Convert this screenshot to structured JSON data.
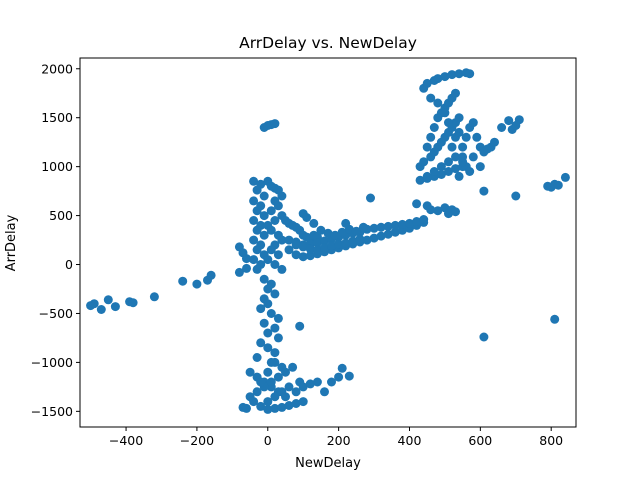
{
  "chart_data": {
    "type": "scatter",
    "title": "ArrDelay vs. NewDelay",
    "xlabel": "NewDelay",
    "ylabel": "ArrDelay",
    "xlim": [
      -530,
      870
    ],
    "ylim": [
      -1660,
      2110
    ],
    "xticks": [
      -400,
      -200,
      0,
      200,
      400,
      600,
      800
    ],
    "xtick_labels": [
      "−400",
      "−200",
      "0",
      "200",
      "400",
      "600",
      "800"
    ],
    "yticks": [
      -1500,
      -1000,
      -500,
      0,
      500,
      1000,
      1500,
      2000
    ],
    "ytick_labels": [
      "−1500",
      "−1000",
      "−500",
      "0",
      "500",
      "1000",
      "1500",
      "2000"
    ],
    "grid": false,
    "color": "#1f77b4",
    "points": [
      [
        -500,
        -420
      ],
      [
        -490,
        -400
      ],
      [
        -470,
        -460
      ],
      [
        -450,
        -360
      ],
      [
        -430,
        -430
      ],
      [
        -390,
        -380
      ],
      [
        -380,
        -390
      ],
      [
        -320,
        -330
      ],
      [
        -240,
        -170
      ],
      [
        -200,
        -200
      ],
      [
        -170,
        -160
      ],
      [
        -160,
        -110
      ],
      [
        -10,
        1400
      ],
      [
        0,
        1420
      ],
      [
        10,
        1430
      ],
      [
        20,
        1440
      ],
      [
        -80,
        180
      ],
      [
        -70,
        120
      ],
      [
        -60,
        60
      ],
      [
        -80,
        -80
      ],
      [
        -60,
        -40
      ],
      [
        -40,
        850
      ],
      [
        -20,
        820
      ],
      [
        -30,
        760
      ],
      [
        -10,
        700
      ],
      [
        -40,
        650
      ],
      [
        -20,
        600
      ],
      [
        -30,
        550
      ],
      [
        -10,
        500
      ],
      [
        -40,
        450
      ],
      [
        -20,
        400
      ],
      [
        -30,
        350
      ],
      [
        -10,
        300
      ],
      [
        -40,
        250
      ],
      [
        -20,
        200
      ],
      [
        -30,
        150
      ],
      [
        -10,
        100
      ],
      [
        -40,
        50
      ],
      [
        -20,
        0
      ],
      [
        -30,
        -50
      ],
      [
        0,
        850
      ],
      [
        10,
        800
      ],
      [
        20,
        780
      ],
      [
        30,
        760
      ],
      [
        40,
        700
      ],
      [
        20,
        650
      ],
      [
        30,
        600
      ],
      [
        10,
        550
      ],
      [
        40,
        500
      ],
      [
        20,
        450
      ],
      [
        0,
        400
      ],
      [
        10,
        350
      ],
      [
        30,
        300
      ],
      [
        40,
        250
      ],
      [
        20,
        200
      ],
      [
        10,
        150
      ],
      [
        30,
        100
      ],
      [
        0,
        50
      ],
      [
        20,
        0
      ],
      [
        40,
        -50
      ],
      [
        50,
        450
      ],
      [
        60,
        420
      ],
      [
        70,
        400
      ],
      [
        80,
        380
      ],
      [
        90,
        350
      ],
      [
        100,
        300
      ],
      [
        110,
        280
      ],
      [
        120,
        260
      ],
      [
        130,
        300
      ],
      [
        140,
        280
      ],
      [
        60,
        150
      ],
      [
        80,
        100
      ],
      [
        100,
        80
      ],
      [
        120,
        90
      ],
      [
        140,
        110
      ],
      [
        160,
        130
      ],
      [
        180,
        150
      ],
      [
        200,
        170
      ],
      [
        220,
        190
      ],
      [
        240,
        210
      ],
      [
        260,
        230
      ],
      [
        280,
        250
      ],
      [
        300,
        270
      ],
      [
        320,
        290
      ],
      [
        340,
        310
      ],
      [
        360,
        330
      ],
      [
        380,
        350
      ],
      [
        400,
        370
      ],
      [
        420,
        400
      ],
      [
        440,
        430
      ],
      [
        60,
        250
      ],
      [
        80,
        230
      ],
      [
        100,
        200
      ],
      [
        120,
        210
      ],
      [
        140,
        220
      ],
      [
        160,
        240
      ],
      [
        180,
        260
      ],
      [
        200,
        280
      ],
      [
        220,
        300
      ],
      [
        240,
        320
      ],
      [
        260,
        330
      ],
      [
        280,
        360
      ],
      [
        300,
        370
      ],
      [
        320,
        380
      ],
      [
        340,
        390
      ],
      [
        360,
        400
      ],
      [
        380,
        410
      ],
      [
        400,
        420
      ],
      [
        420,
        440
      ],
      [
        440,
        460
      ],
      [
        80,
        200
      ],
      [
        100,
        180
      ],
      [
        120,
        160
      ],
      [
        140,
        150
      ],
      [
        160,
        170
      ],
      [
        180,
        190
      ],
      [
        200,
        210
      ],
      [
        220,
        220
      ],
      [
        240,
        240
      ],
      [
        260,
        260
      ],
      [
        100,
        520
      ],
      [
        110,
        480
      ],
      [
        130,
        420
      ],
      [
        150,
        350
      ],
      [
        170,
        320
      ],
      [
        190,
        300
      ],
      [
        210,
        330
      ],
      [
        230,
        360
      ],
      [
        250,
        340
      ],
      [
        270,
        380
      ],
      [
        220,
        420
      ],
      [
        290,
        680
      ],
      [
        420,
        620
      ],
      [
        450,
        600
      ],
      [
        460,
        560
      ],
      [
        480,
        550
      ],
      [
        500,
        580
      ],
      [
        510,
        520
      ],
      [
        520,
        560
      ],
      [
        530,
        540
      ],
      [
        610,
        750
      ],
      [
        700,
        700
      ],
      [
        790,
        800
      ],
      [
        800,
        790
      ],
      [
        810,
        820
      ],
      [
        820,
        810
      ],
      [
        840,
        890
      ],
      [
        430,
        860
      ],
      [
        450,
        880
      ],
      [
        470,
        900
      ],
      [
        490,
        920
      ],
      [
        510,
        950
      ],
      [
        530,
        980
      ],
      [
        550,
        1000
      ],
      [
        430,
        1000
      ],
      [
        440,
        1050
      ],
      [
        460,
        1100
      ],
      [
        470,
        1150
      ],
      [
        480,
        1200
      ],
      [
        490,
        1250
      ],
      [
        500,
        1300
      ],
      [
        510,
        1350
      ],
      [
        520,
        1400
      ],
      [
        530,
        1450
      ],
      [
        540,
        1500
      ],
      [
        450,
        1200
      ],
      [
        460,
        1300
      ],
      [
        470,
        1400
      ],
      [
        480,
        1500
      ],
      [
        490,
        1550
      ],
      [
        500,
        1600
      ],
      [
        510,
        1650
      ],
      [
        520,
        1700
      ],
      [
        530,
        1750
      ],
      [
        440,
        1800
      ],
      [
        450,
        1850
      ],
      [
        470,
        1880
      ],
      [
        480,
        1900
      ],
      [
        500,
        1920
      ],
      [
        520,
        1940
      ],
      [
        540,
        1950
      ],
      [
        560,
        1960
      ],
      [
        570,
        1950
      ],
      [
        460,
        1700
      ],
      [
        480,
        1650
      ],
      [
        500,
        1550
      ],
      [
        510,
        1450
      ],
      [
        450,
        900
      ],
      [
        470,
        950
      ],
      [
        490,
        1000
      ],
      [
        510,
        1050
      ],
      [
        530,
        1100
      ],
      [
        550,
        1200
      ],
      [
        560,
        1300
      ],
      [
        570,
        1400
      ],
      [
        580,
        1450
      ],
      [
        590,
        1300
      ],
      [
        600,
        1200
      ],
      [
        610,
        1150
      ],
      [
        620,
        1180
      ],
      [
        630,
        1200
      ],
      [
        640,
        1250
      ],
      [
        660,
        1400
      ],
      [
        680,
        1470
      ],
      [
        690,
        1380
      ],
      [
        700,
        1420
      ],
      [
        710,
        1480
      ],
      [
        560,
        1000
      ],
      [
        570,
        950
      ],
      [
        580,
        1100
      ],
      [
        550,
        1050
      ],
      [
        540,
        900
      ],
      [
        600,
        1000
      ],
      [
        520,
        1200
      ],
      [
        530,
        1300
      ],
      [
        540,
        1350
      ],
      [
        550,
        1100
      ],
      [
        -10,
        -150
      ],
      [
        0,
        -250
      ],
      [
        10,
        -200
      ],
      [
        -10,
        -350
      ],
      [
        20,
        -300
      ],
      [
        0,
        -400
      ],
      [
        -20,
        -450
      ],
      [
        10,
        -500
      ],
      [
        30,
        -550
      ],
      [
        -10,
        -600
      ],
      [
        20,
        -650
      ],
      [
        0,
        -700
      ],
      [
        30,
        -750
      ],
      [
        90,
        -630
      ],
      [
        -20,
        -800
      ],
      [
        0,
        -850
      ],
      [
        20,
        -900
      ],
      [
        -30,
        -950
      ],
      [
        10,
        -1000
      ],
      [
        40,
        -1050
      ],
      [
        -50,
        -1100
      ],
      [
        -30,
        -1150
      ],
      [
        -10,
        -1200
      ],
      [
        10,
        -1250
      ],
      [
        30,
        -1300
      ],
      [
        50,
        -1350
      ],
      [
        -40,
        -1400
      ],
      [
        -20,
        -1450
      ],
      [
        0,
        -1480
      ],
      [
        20,
        -1470
      ],
      [
        40,
        -1460
      ],
      [
        60,
        -1440
      ],
      [
        80,
        -1420
      ],
      [
        100,
        -1400
      ],
      [
        -60,
        -1470
      ],
      [
        -70,
        -1460
      ],
      [
        -50,
        -1350
      ],
      [
        -30,
        -1300
      ],
      [
        -10,
        -1250
      ],
      [
        10,
        -1200
      ],
      [
        30,
        -1150
      ],
      [
        50,
        -1100
      ],
      [
        70,
        -1050
      ],
      [
        90,
        -1200
      ],
      [
        100,
        -1250
      ],
      [
        120,
        -1220
      ],
      [
        140,
        -1200
      ],
      [
        160,
        -1300
      ],
      [
        180,
        -1200
      ],
      [
        200,
        -1150
      ],
      [
        210,
        -1060
      ],
      [
        230,
        -1140
      ],
      [
        0,
        -1400
      ],
      [
        20,
        -1350
      ],
      [
        40,
        -1300
      ],
      [
        60,
        -1250
      ],
      [
        80,
        -1300
      ],
      [
        -20,
        -1200
      ],
      [
        0,
        -1100
      ],
      [
        20,
        -1000
      ],
      [
        610,
        -740
      ],
      [
        810,
        -560
      ]
    ]
  }
}
